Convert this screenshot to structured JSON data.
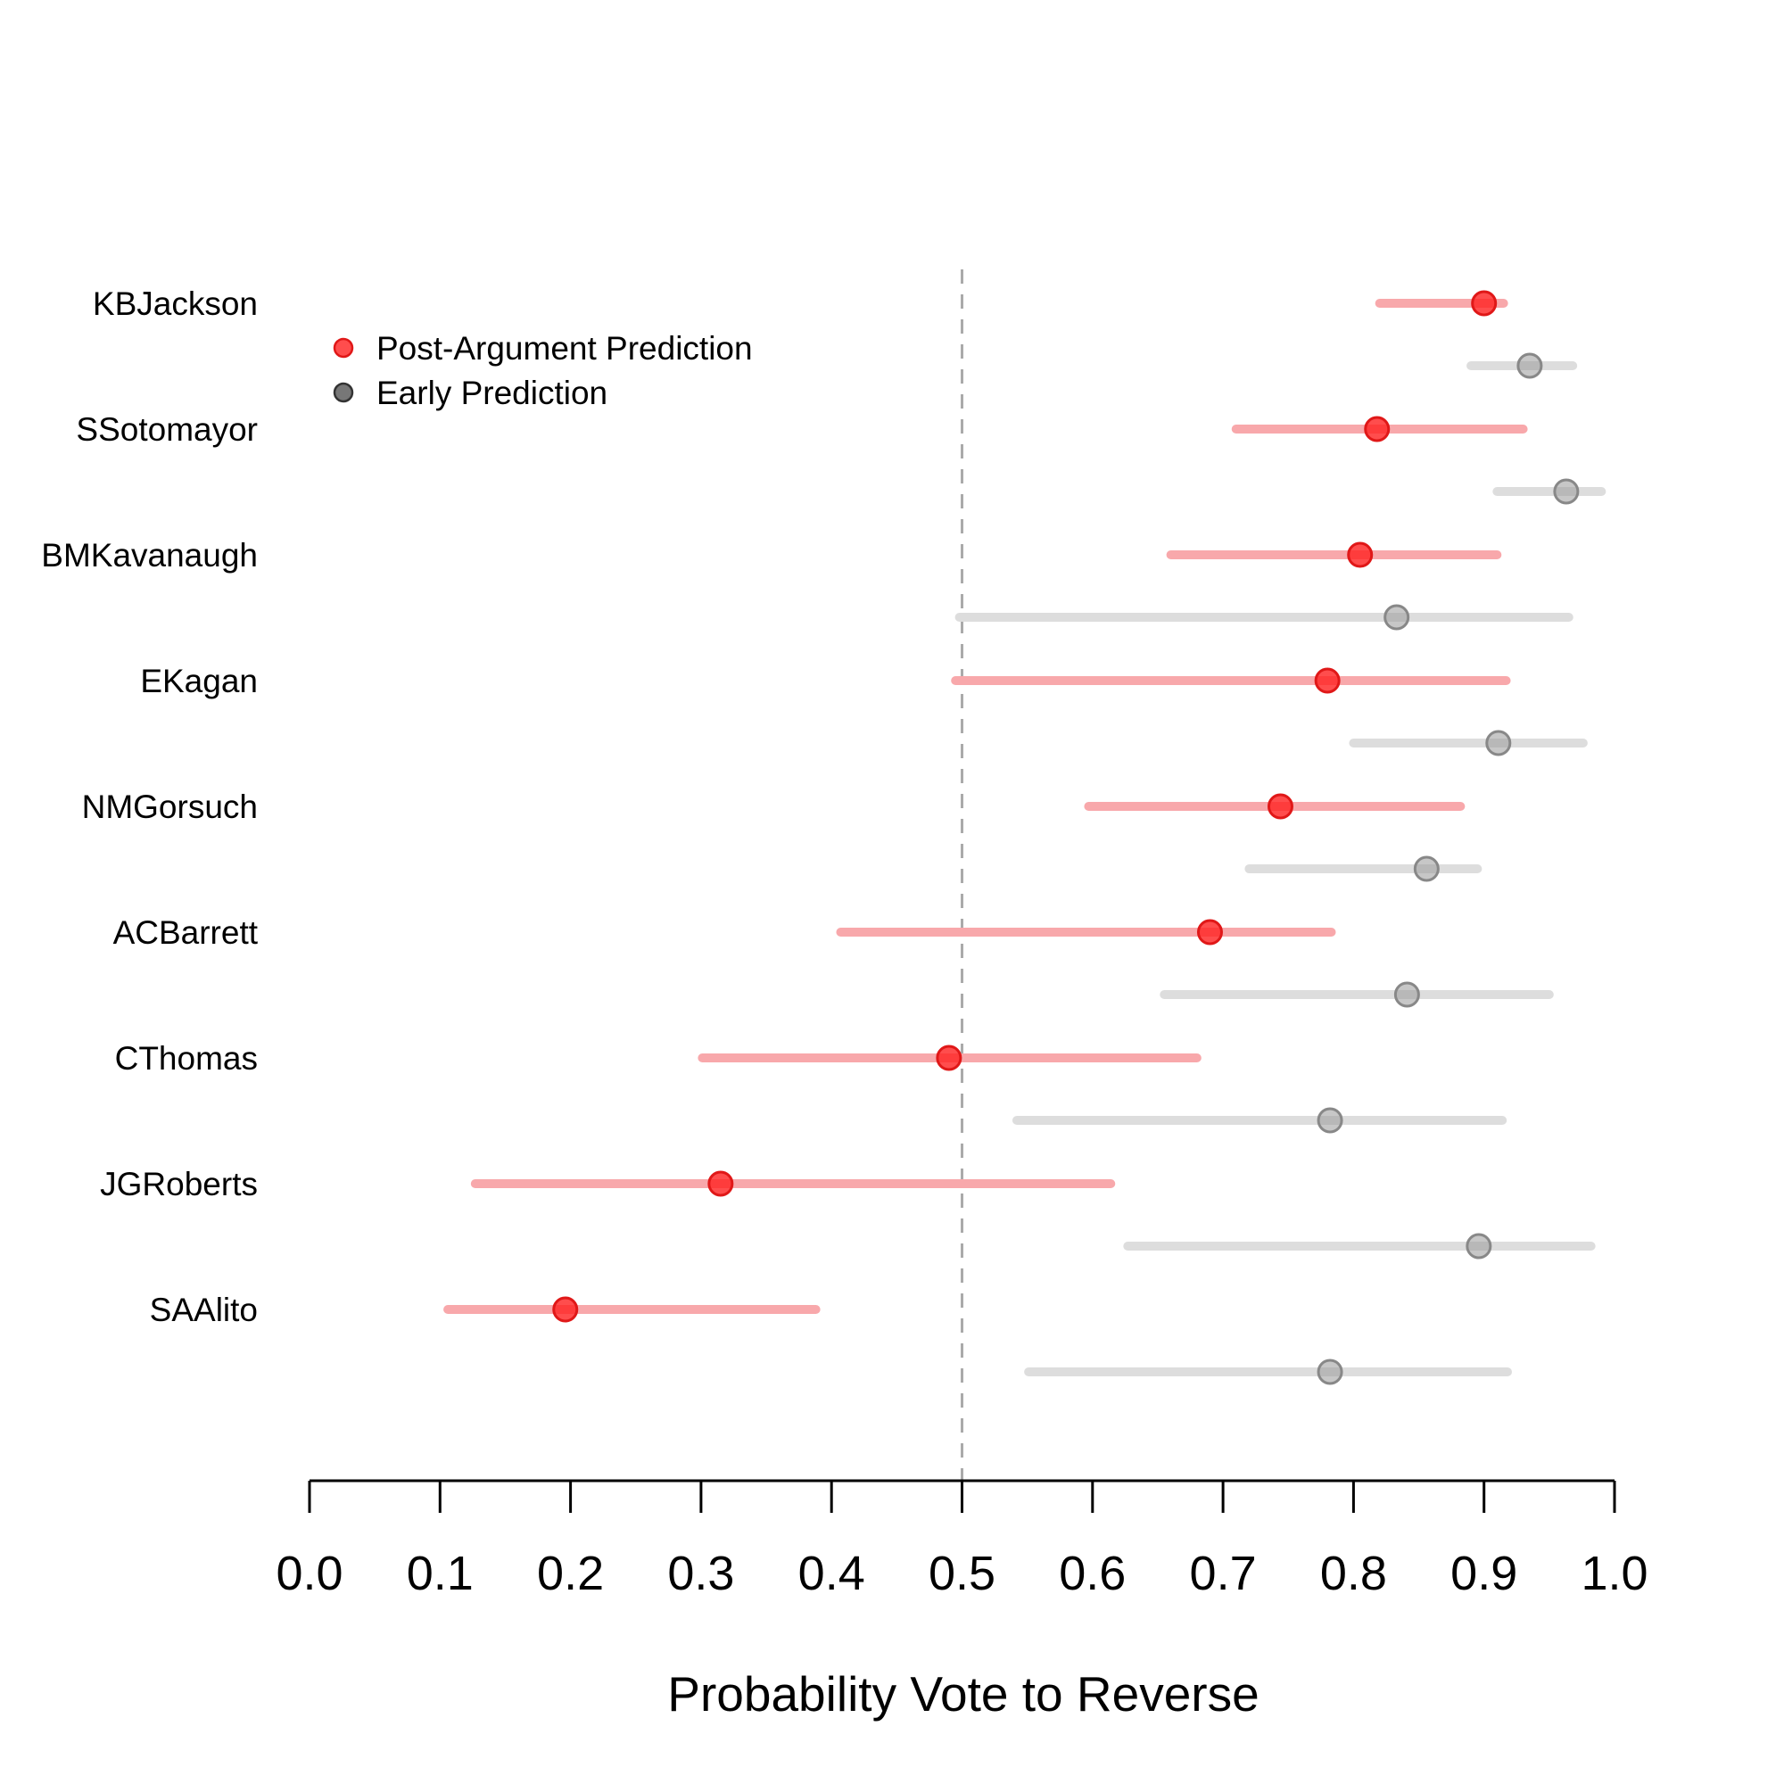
{
  "chart_data": {
    "type": "dot-interval",
    "title": "",
    "xlabel": "Probability Vote to Reverse",
    "ylabel": "",
    "xlim": [
      0.0,
      1.0
    ],
    "xticks": [
      "0.0",
      "0.1",
      "0.2",
      "0.3",
      "0.4",
      "0.5",
      "0.6",
      "0.7",
      "0.8",
      "0.9",
      "1.0"
    ],
    "reference_line": 0.5,
    "legend": [
      {
        "label": "Post-Argument Prediction",
        "color": "#ff2020"
      },
      {
        "label": "Early Prediction",
        "color": "#555555"
      }
    ],
    "series": [
      {
        "name": "Post-Argument Prediction",
        "color": "#ff2020",
        "interval_color": "#f8a8ab",
        "points": [
          {
            "justice": "KBJackson",
            "estimate": 0.9,
            "low": 0.82,
            "high": 0.915
          },
          {
            "justice": "SSotomayor",
            "estimate": 0.818,
            "low": 0.71,
            "high": 0.93
          },
          {
            "justice": "BMKavanaugh",
            "estimate": 0.805,
            "low": 0.66,
            "high": 0.91
          },
          {
            "justice": "EKagan",
            "estimate": 0.78,
            "low": 0.495,
            "high": 0.917
          },
          {
            "justice": "NMGorsuch",
            "estimate": 0.744,
            "low": 0.597,
            "high": 0.882
          },
          {
            "justice": "ACBarrett",
            "estimate": 0.69,
            "low": 0.407,
            "high": 0.783
          },
          {
            "justice": "CThomas",
            "estimate": 0.49,
            "low": 0.301,
            "high": 0.68
          },
          {
            "justice": "JGRoberts",
            "estimate": 0.315,
            "low": 0.127,
            "high": 0.614
          },
          {
            "justice": "SAAlito",
            "estimate": 0.196,
            "low": 0.106,
            "high": 0.388
          }
        ]
      },
      {
        "name": "Early Prediction",
        "color": "#999999",
        "interval_color": "#dddddd",
        "points": [
          {
            "justice": "KBJackson",
            "estimate": 0.935,
            "low": 0.89,
            "high": 0.968
          },
          {
            "justice": "SSotomayor",
            "estimate": 0.963,
            "low": 0.91,
            "high": 0.99
          },
          {
            "justice": "BMKavanaugh",
            "estimate": 0.833,
            "low": 0.498,
            "high": 0.965
          },
          {
            "justice": "EKagan",
            "estimate": 0.911,
            "low": 0.8,
            "high": 0.976
          },
          {
            "justice": "NMGorsuch",
            "estimate": 0.856,
            "low": 0.72,
            "high": 0.895
          },
          {
            "justice": "ACBarrett",
            "estimate": 0.841,
            "low": 0.655,
            "high": 0.95
          },
          {
            "justice": "CThomas",
            "estimate": 0.782,
            "low": 0.542,
            "high": 0.914
          },
          {
            "justice": "JGRoberts",
            "estimate": 0.896,
            "low": 0.627,
            "high": 0.982
          },
          {
            "justice": "SAAlito",
            "estimate": 0.782,
            "low": 0.551,
            "high": 0.918
          }
        ]
      }
    ]
  }
}
